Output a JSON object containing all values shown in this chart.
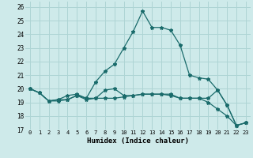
{
  "xlabel": "Humidex (Indice chaleur)",
  "ylabel": "",
  "xlim": [
    -0.5,
    23.5
  ],
  "ylim": [
    17,
    26.4
  ],
  "yticks": [
    17,
    18,
    19,
    20,
    21,
    22,
    23,
    24,
    25,
    26
  ],
  "xticks": [
    0,
    1,
    2,
    3,
    4,
    5,
    6,
    7,
    8,
    9,
    10,
    11,
    12,
    13,
    14,
    15,
    16,
    17,
    18,
    19,
    20,
    21,
    22,
    23
  ],
  "bg_color": "#ceeaea",
  "line_color": "#1a6b6b",
  "grid_color": "#aed4d4",
  "series": [
    [
      20.0,
      19.7,
      19.1,
      19.1,
      19.2,
      19.5,
      19.2,
      19.3,
      19.9,
      20.0,
      19.5,
      19.5,
      19.6,
      19.6,
      19.6,
      19.6,
      19.3,
      19.3,
      19.3,
      19.3,
      19.9,
      18.8,
      17.3,
      17.5
    ],
    [
      20.0,
      19.7,
      19.1,
      19.2,
      19.2,
      19.5,
      19.3,
      20.5,
      21.3,
      21.8,
      23.0,
      24.2,
      25.7,
      24.5,
      24.5,
      24.3,
      23.2,
      21.0,
      20.8,
      20.7,
      19.9,
      18.8,
      17.3,
      17.5
    ],
    [
      20.0,
      19.7,
      19.1,
      19.2,
      19.5,
      19.6,
      19.3,
      19.3,
      19.3,
      19.3,
      19.4,
      19.5,
      19.6,
      19.6,
      19.6,
      19.5,
      19.3,
      19.3,
      19.3,
      19.0,
      18.5,
      18.0,
      17.3,
      17.5
    ]
  ]
}
